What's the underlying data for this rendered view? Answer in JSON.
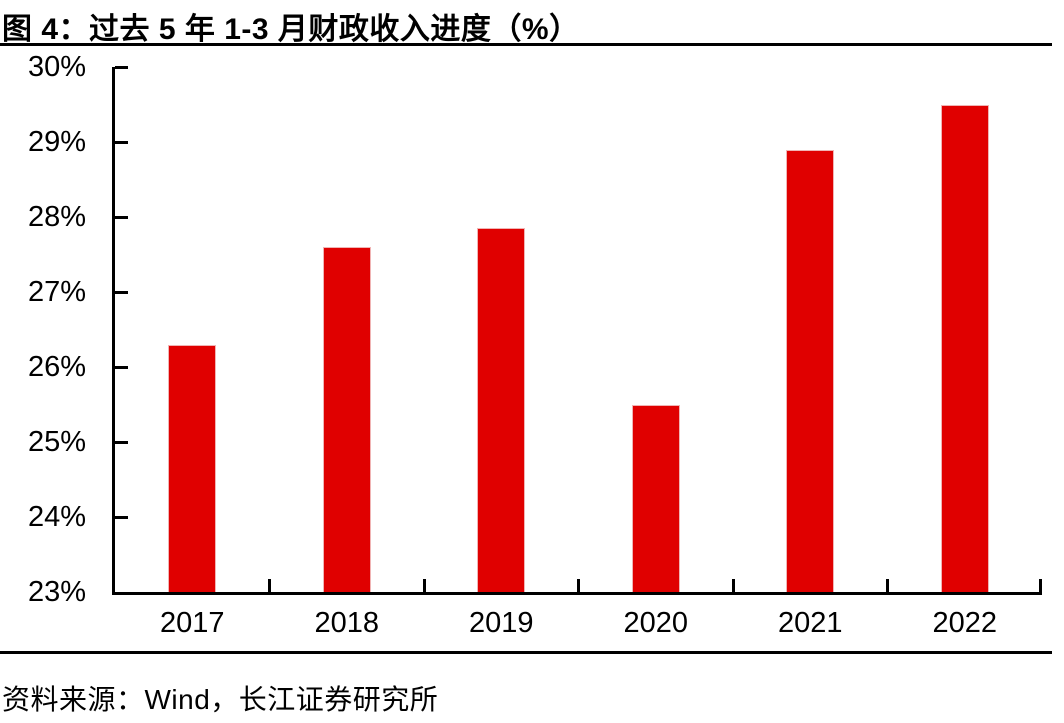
{
  "figure": {
    "title": "图 4：过去 5 年 1-3 月财政收入进度（%）",
    "source": "资料来源：Wind，长江证券研究所"
  },
  "colors": {
    "bar": "#e00000",
    "axis": "#000000",
    "text": "#000000"
  },
  "chart_data": {
    "type": "bar",
    "title": "过去 5 年 1-3 月财政收入进度（%）",
    "categories": [
      "2017",
      "2018",
      "2019",
      "2020",
      "2021",
      "2022"
    ],
    "values": [
      26.3,
      27.6,
      27.85,
      25.5,
      28.9,
      29.5
    ],
    "xlabel": "",
    "ylabel": "",
    "ylim": [
      23,
      30
    ],
    "y_tick_step": 1,
    "y_tick_labels": [
      "23%",
      "24%",
      "25%",
      "26%",
      "27%",
      "28%",
      "29%",
      "30%"
    ],
    "grid": false,
    "legend": "none",
    "bar_color": "#e00000"
  }
}
